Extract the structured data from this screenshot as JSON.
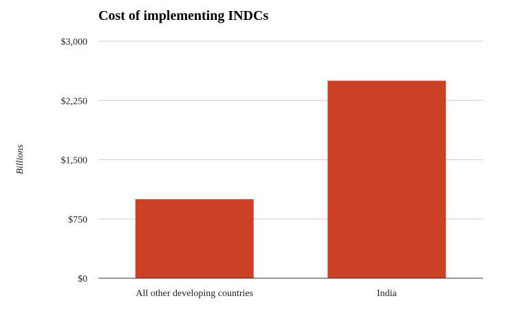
{
  "chart_data": {
    "type": "bar",
    "title": "Cost of implementing INDCs",
    "xlabel": "",
    "ylabel": "Billions",
    "categories": [
      "All other developing countries",
      "India"
    ],
    "values": [
      1000,
      2500
    ],
    "ylim": [
      0,
      3000
    ],
    "yticks": [
      0,
      750,
      1500,
      2250,
      3000
    ],
    "ytick_labels": [
      "$0",
      "$750",
      "$1,500",
      "$2,250",
      "$3,000"
    ],
    "grid": true,
    "legend": "none",
    "bar_color": "#cc4125"
  }
}
